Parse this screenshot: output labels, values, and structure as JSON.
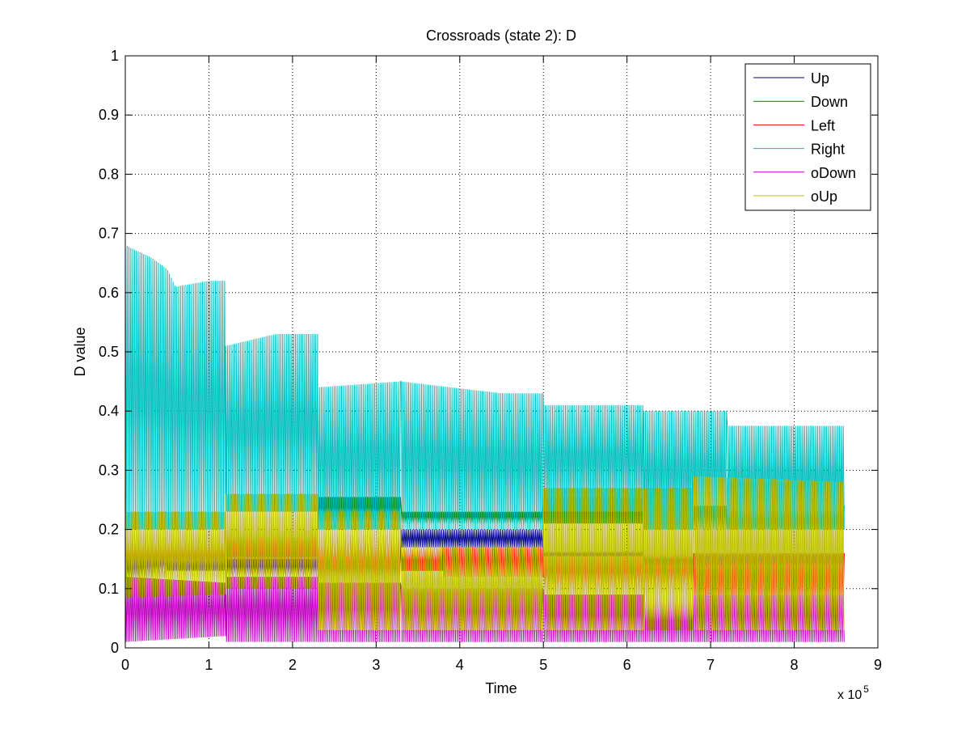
{
  "chart_data": {
    "type": "line",
    "title": "Crossroads (state 2): D",
    "xlabel": "Time",
    "ylabel": "D value",
    "x_exponent_label": {
      "base": "x 10",
      "exponent": "5"
    },
    "xlim": [
      0,
      9
    ],
    "ylim": [
      0,
      1
    ],
    "x_ticks": [
      0,
      1,
      2,
      3,
      4,
      5,
      6,
      7,
      8,
      9
    ],
    "x_tick_labels": [
      "0",
      "1",
      "2",
      "3",
      "4",
      "5",
      "6",
      "7",
      "8",
      "9"
    ],
    "y_ticks": [
      0,
      0.1,
      0.2,
      0.3,
      0.4,
      0.5,
      0.6,
      0.7,
      0.8,
      0.9,
      1
    ],
    "y_tick_labels": [
      "0",
      "0.1",
      "0.2",
      "0.3",
      "0.4",
      "0.5",
      "0.6",
      "0.7",
      "0.8",
      "0.9",
      "1"
    ],
    "grid": true,
    "legend_position": "top-right",
    "series": [
      {
        "name": "Up",
        "color": "#00008b",
        "segments": [
          {
            "x": [
              0,
              0.5
            ],
            "low": [
              0.11,
              0.12
            ],
            "high": [
              0.15,
              0.16
            ]
          },
          {
            "x": [
              0.5,
              1.2
            ],
            "low": [
              0.13,
              0.13
            ],
            "high": [
              0.15,
              0.15
            ]
          },
          {
            "x": [
              1.2,
              3.3
            ],
            "low": [
              0.12,
              0.12
            ],
            "high": [
              0.15,
              0.15
            ]
          },
          {
            "x": [
              3.3,
              5.0
            ],
            "low": [
              0.17,
              0.17
            ],
            "high": [
              0.2,
              0.2
            ]
          },
          {
            "x": [
              5.0,
              6.2
            ],
            "low": [
              0.155,
              0.155
            ],
            "high": [
              0.165,
              0.165
            ]
          },
          {
            "x": [
              6.2,
              8.6
            ],
            "low": [
              0.14,
              0.14
            ],
            "high": [
              0.16,
              0.16
            ]
          }
        ]
      },
      {
        "name": "Down",
        "color": "#008000",
        "segments": [
          {
            "x": [
              0,
              1.2
            ],
            "low": [
              0.14,
              0.14
            ],
            "high": [
              0.16,
              0.16
            ]
          },
          {
            "x": [
              1.2,
              2.3
            ],
            "low": [
              0.14,
              0.14
            ],
            "high": [
              0.17,
              0.17
            ]
          },
          {
            "x": [
              2.3,
              3.3
            ],
            "low": [
              0.215,
              0.215
            ],
            "high": [
              0.255,
              0.255
            ]
          },
          {
            "x": [
              3.3,
              5.0
            ],
            "low": [
              0.21,
              0.21
            ],
            "high": [
              0.23,
              0.23
            ]
          },
          {
            "x": [
              5.0,
              6.2
            ],
            "low": [
              0.21,
              0.21
            ],
            "high": [
              0.255,
              0.255
            ]
          },
          {
            "x": [
              6.2,
              8.6
            ],
            "low": [
              0.2,
              0.2
            ],
            "high": [
              0.24,
              0.24
            ]
          }
        ]
      },
      {
        "name": "Left",
        "color": "#ff0000",
        "segments": [
          {
            "x": [
              0,
              1.2
            ],
            "low": [
              0.12,
              0.12
            ],
            "high": [
              0.19,
              0.19
            ]
          },
          {
            "x": [
              1.2,
              2.3
            ],
            "low": [
              0.12,
              0.12
            ],
            "high": [
              0.2,
              0.2
            ]
          },
          {
            "x": [
              2.3,
              3.3
            ],
            "low": [
              0.11,
              0.11
            ],
            "high": [
              0.19,
              0.19
            ]
          },
          {
            "x": [
              3.3,
              3.8
            ],
            "low": [
              0.13,
              0.13
            ],
            "high": [
              0.17,
              0.17
            ]
          },
          {
            "x": [
              3.8,
              5.0
            ],
            "low": [
              0.12,
              0.12
            ],
            "high": [
              0.17,
              0.17
            ]
          },
          {
            "x": [
              5.0,
              6.2
            ],
            "low": [
              0.09,
              0.09
            ],
            "high": [
              0.16,
              0.16
            ]
          },
          {
            "x": [
              6.2,
              8.6
            ],
            "low": [
              0.09,
              0.09
            ],
            "high": [
              0.16,
              0.16
            ]
          }
        ]
      },
      {
        "name": "Right",
        "color": "#00bfbf",
        "segments": [
          {
            "x": [
              0,
              0.3,
              0.5,
              0.6,
              1.0,
              1.2
            ],
            "low": [
              0.2,
              0.2,
              0.2,
              0.2,
              0.2,
              0.2
            ],
            "high": [
              0.68,
              0.66,
              0.64,
              0.61,
              0.62,
              0.62
            ]
          },
          {
            "x": [
              1.2,
              1.8,
              2.3
            ],
            "low": [
              0.23,
              0.23,
              0.23
            ],
            "high": [
              0.51,
              0.53,
              0.53
            ]
          },
          {
            "x": [
              2.3,
              3.3
            ],
            "low": [
              0.2,
              0.2
            ],
            "high": [
              0.44,
              0.45
            ]
          },
          {
            "x": [
              3.3,
              4.5,
              5.0
            ],
            "low": [
              0.2,
              0.2,
              0.2
            ],
            "high": [
              0.45,
              0.43,
              0.43
            ]
          },
          {
            "x": [
              5.0,
              6.2
            ],
            "low": [
              0.23,
              0.23
            ],
            "high": [
              0.41,
              0.41
            ]
          },
          {
            "x": [
              6.2,
              7.2
            ],
            "low": [
              0.2,
              0.2
            ],
            "high": [
              0.4,
              0.4
            ]
          },
          {
            "x": [
              7.2,
              8.6
            ],
            "low": [
              0.2,
              0.2
            ],
            "high": [
              0.375,
              0.375
            ]
          }
        ]
      },
      {
        "name": "oDown",
        "color": "#bf00bf",
        "segments": [
          {
            "x": [
              0,
              1.2
            ],
            "low": [
              0.01,
              0.02
            ],
            "high": [
              0.12,
              0.11
            ]
          },
          {
            "x": [
              1.2,
              2.3
            ],
            "low": [
              0.01,
              0.01
            ],
            "high": [
              0.12,
              0.12
            ]
          },
          {
            "x": [
              2.3,
              3.3
            ],
            "low": [
              0.01,
              0.01
            ],
            "high": [
              0.11,
              0.11
            ]
          },
          {
            "x": [
              3.3,
              5.0
            ],
            "low": [
              0.01,
              0.01
            ],
            "high": [
              0.1,
              0.1
            ]
          },
          {
            "x": [
              5.0,
              8.6
            ],
            "low": [
              0.01,
              0.01
            ],
            "high": [
              0.09,
              0.09
            ]
          }
        ]
      },
      {
        "name": "oUp",
        "color": "#bfbf00",
        "segments": [
          {
            "x": [
              0,
              1.2
            ],
            "low": [
              0.085,
              0.09
            ],
            "high": [
              0.23,
              0.23
            ]
          },
          {
            "x": [
              1.2,
              2.3
            ],
            "low": [
              0.1,
              0.1
            ],
            "high": [
              0.26,
              0.26
            ]
          },
          {
            "x": [
              2.3,
              3.3
            ],
            "low": [
              0.03,
              0.03
            ],
            "high": [
              0.23,
              0.23
            ]
          },
          {
            "x": [
              3.3,
              5.0
            ],
            "low": [
              0.03,
              0.03
            ],
            "high": [
              0.17,
              0.17
            ]
          },
          {
            "x": [
              5.0,
              6.2
            ],
            "low": [
              0.03,
              0.03
            ],
            "high": [
              0.27,
              0.27
            ]
          },
          {
            "x": [
              6.2,
              6.8
            ],
            "low": [
              0.03,
              0.03
            ],
            "high": [
              0.27,
              0.27
            ]
          },
          {
            "x": [
              6.8,
              8.6
            ],
            "low": [
              0.03,
              0.03
            ],
            "high": [
              0.29,
              0.28
            ]
          }
        ]
      }
    ]
  }
}
